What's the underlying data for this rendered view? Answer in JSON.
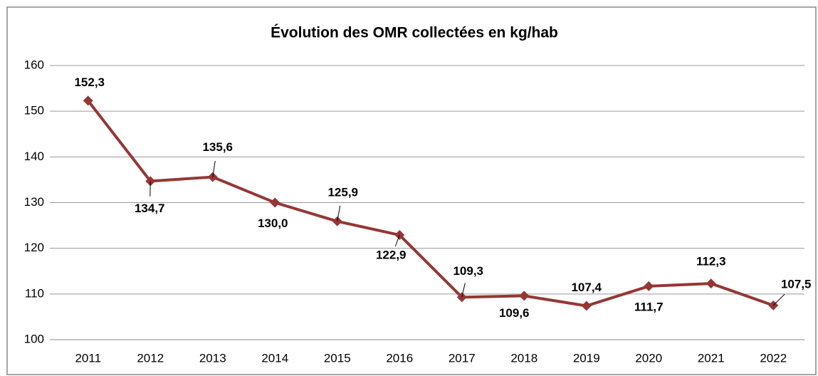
{
  "chart_data": {
    "type": "line",
    "title": "Évolution des OMR collectées en kg/hab",
    "categories": [
      "2011",
      "2012",
      "2013",
      "2014",
      "2015",
      "2016",
      "2017",
      "2018",
      "2019",
      "2020",
      "2021",
      "2022"
    ],
    "series": [
      {
        "name": "OMR",
        "color": "#953735",
        "values": [
          152.3,
          134.7,
          135.6,
          130.0,
          125.9,
          122.9,
          109.3,
          109.6,
          107.4,
          111.7,
          112.3,
          107.5
        ],
        "value_labels": [
          "152,3",
          "134,7",
          "135,6",
          "130,0",
          "125,9",
          "122,9",
          "109,3",
          "109,6",
          "107,4",
          "111,7",
          "112,3",
          "107,5"
        ]
      }
    ],
    "ylim": [
      100,
      160
    ],
    "yticks": [
      100,
      110,
      120,
      130,
      140,
      150,
      160
    ],
    "grid": true
  }
}
